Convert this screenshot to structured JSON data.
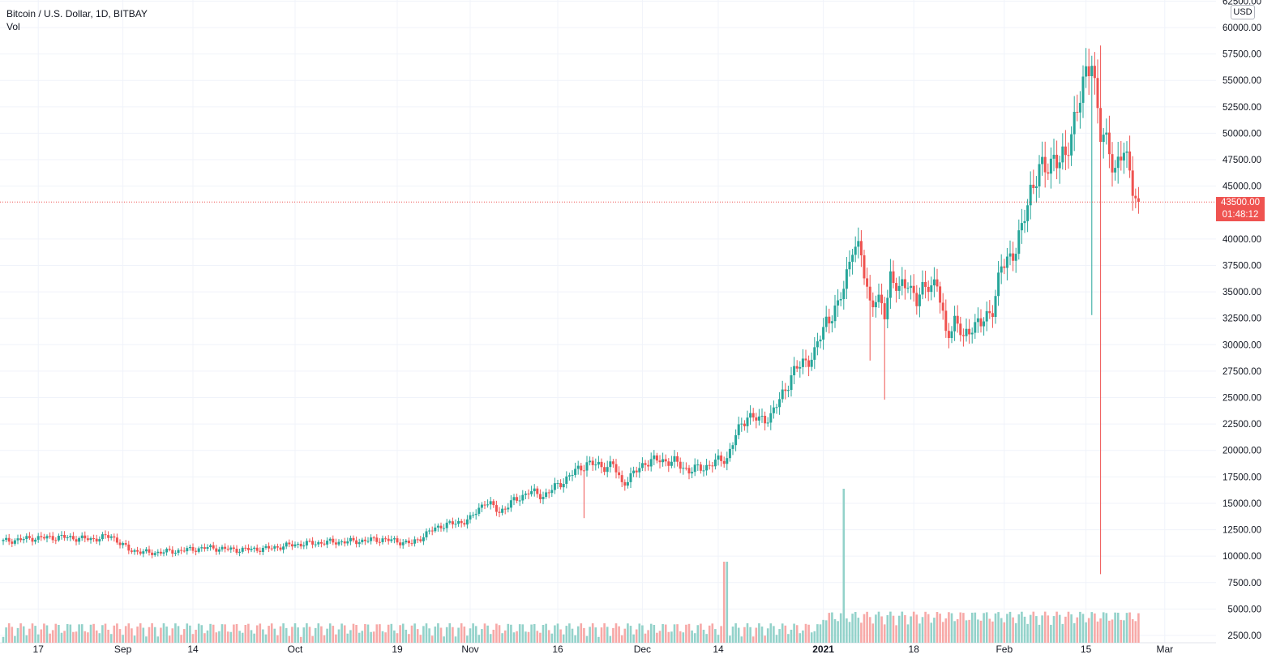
{
  "header": {
    "symbol_line": "Bitcoin / U.S. Dollar, 1D, BITBAY",
    "volume_label": "Vol",
    "currency": "USD"
  },
  "last_price": {
    "price": "43500.00",
    "countdown": "01:48:12",
    "color": "#ef5350"
  },
  "colors": {
    "up": "#26a69a",
    "down": "#ef5350",
    "up_volume": "#93d2ca",
    "down_volume": "#f7a9a7",
    "grid": "#f0f3fa",
    "axis_text": "#131722"
  },
  "chart_data": {
    "type": "candlestick",
    "interval": "1D",
    "y_axis_ticks": [
      "2500.00",
      "5000.00",
      "7500.00",
      "10000.00",
      "12500.00",
      "15000.00",
      "17500.00",
      "20000.00",
      "22500.00",
      "25000.00",
      "27500.00",
      "30000.00",
      "32500.00",
      "35000.00",
      "37500.00",
      "40000.00",
      "45000.00",
      "47500.00",
      "50000.00",
      "52500.00",
      "55000.00",
      "57500.00",
      "60000.00",
      "62500.00"
    ],
    "ylim": [
      1500,
      62500
    ],
    "x_axis_labels": [
      "17",
      "Sep",
      "14",
      "Oct",
      "19",
      "Nov",
      "16",
      "Dec",
      "14",
      "2021",
      "18",
      "Feb",
      "15",
      "Mar"
    ],
    "last_price": 43500,
    "series": [
      {
        "name": "Bitcoin / U.S. Dollar",
        "close_path_key_points": [
          [
            0,
            11400
          ],
          [
            10,
            11700
          ],
          [
            20,
            11800
          ],
          [
            30,
            11600
          ],
          [
            37,
            11900
          ],
          [
            43,
            10600
          ],
          [
            50,
            10300
          ],
          [
            60,
            10500
          ],
          [
            70,
            10800
          ],
          [
            80,
            10600
          ],
          [
            90,
            10700
          ],
          [
            100,
            11100
          ],
          [
            110,
            11300
          ],
          [
            120,
            11400
          ],
          [
            130,
            11600
          ],
          [
            140,
            11200
          ],
          [
            146,
            12300
          ],
          [
            150,
            12900
          ],
          [
            155,
            13100
          ],
          [
            160,
            13500
          ],
          [
            165,
            15200
          ],
          [
            170,
            14200
          ],
          [
            175,
            15200
          ],
          [
            180,
            16100
          ],
          [
            185,
            15700
          ],
          [
            190,
            16700
          ],
          [
            195,
            17800
          ],
          [
            200,
            18800
          ],
          [
            205,
            18500
          ],
          [
            209,
            18600
          ],
          [
            212,
            16900
          ],
          [
            215,
            17500
          ],
          [
            220,
            18900
          ],
          [
            225,
            19100
          ],
          [
            230,
            18900
          ],
          [
            235,
            18100
          ],
          [
            240,
            18400
          ],
          [
            245,
            19000
          ],
          [
            248,
            19300
          ],
          [
            251,
            21400
          ],
          [
            255,
            23400
          ],
          [
            259,
            22800
          ],
          [
            263,
            23300
          ],
          [
            266,
            24700
          ],
          [
            270,
            27100
          ],
          [
            274,
            28300
          ],
          [
            278,
            29100
          ],
          [
            282,
            32400
          ],
          [
            286,
            33400
          ],
          [
            288,
            35600
          ],
          [
            291,
            39400
          ],
          [
            294,
            38300
          ],
          [
            297,
            34100
          ],
          [
            299,
            34200
          ],
          [
            302,
            33000
          ],
          [
            304,
            36700
          ],
          [
            307,
            34900
          ],
          [
            310,
            36200
          ],
          [
            313,
            34000
          ],
          [
            317,
            36000
          ],
          [
            320,
            35600
          ],
          [
            323,
            31000
          ],
          [
            326,
            32300
          ],
          [
            329,
            30500
          ],
          [
            332,
            32000
          ],
          [
            335,
            31800
          ],
          [
            339,
            33600
          ],
          [
            342,
            37100
          ],
          [
            344,
            38100
          ],
          [
            347,
            39200
          ],
          [
            349,
            40700
          ],
          [
            352,
            44800
          ],
          [
            355,
            46500
          ],
          [
            357,
            46400
          ],
          [
            360,
            48000
          ],
          [
            362,
            47200
          ],
          [
            364,
            47500
          ],
          [
            367,
            51700
          ],
          [
            370,
            54100
          ],
          [
            373,
            57500
          ],
          [
            376,
            49700
          ],
          [
            379,
            48400
          ],
          [
            381,
            46800
          ],
          [
            384,
            48100
          ],
          [
            386,
            46300
          ],
          [
            389,
            43500
          ]
        ]
      }
    ],
    "volume_label": "Vol"
  }
}
